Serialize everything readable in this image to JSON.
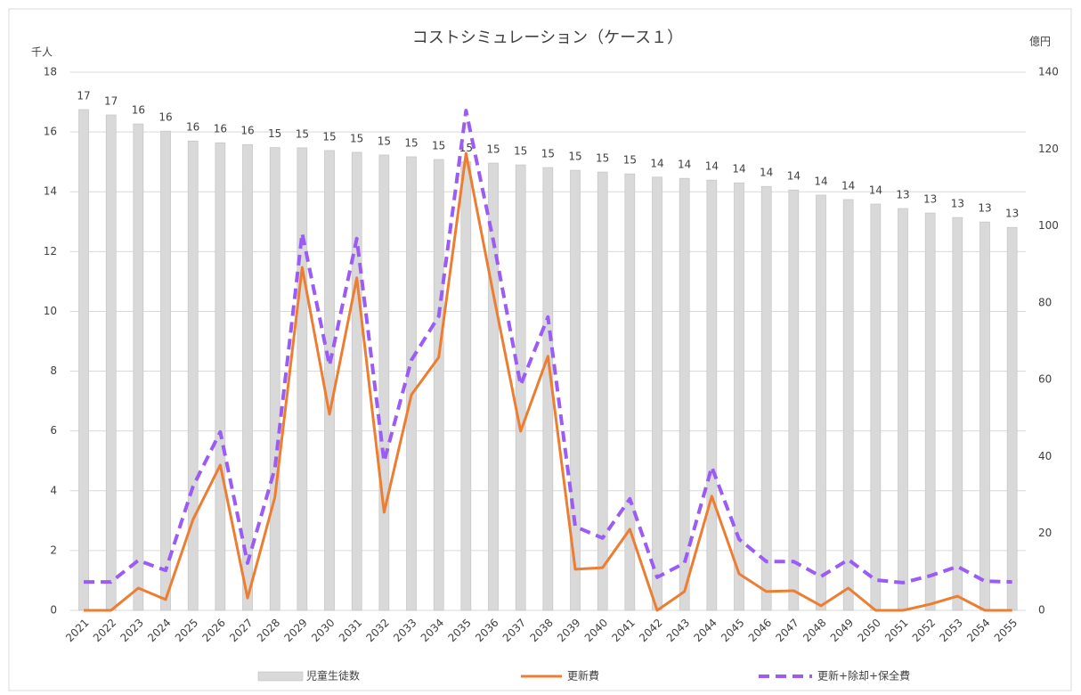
{
  "chart_data": {
    "type": "bar",
    "title": "コストシミュレーション（ケース１）",
    "y_label": "千人",
    "y2_label": "億円",
    "categories": [
      "2021",
      "2022",
      "2023",
      "2024",
      "2025",
      "2026",
      "2027",
      "2028",
      "2029",
      "2030",
      "2031",
      "2032",
      "2033",
      "2034",
      "2035",
      "2036",
      "2037",
      "2038",
      "2039",
      "2040",
      "2041",
      "2042",
      "2043",
      "2044",
      "2045",
      "2046",
      "2047",
      "2048",
      "2049",
      "2050",
      "2051",
      "2052",
      "2053",
      "2054",
      "2055"
    ],
    "ylim": [
      0,
      18
    ],
    "yticks": [
      0,
      2,
      4,
      6,
      8,
      10,
      12,
      14,
      16,
      18
    ],
    "y2lim": [
      0,
      140
    ],
    "y2ticks": [
      0,
      20,
      40,
      60,
      80,
      100,
      120,
      140
    ],
    "grid": true,
    "legend": "bottom",
    "series": [
      {
        "name": "児童生徒数",
        "type": "bar",
        "color": "#d9d9d9",
        "values": [
          16.75,
          16.57,
          16.27,
          16.03,
          15.7,
          15.64,
          15.58,
          15.48,
          15.47,
          15.38,
          15.32,
          15.23,
          15.17,
          15.08,
          15.0,
          14.96,
          14.9,
          14.81,
          14.72,
          14.66,
          14.6,
          14.49,
          14.45,
          14.39,
          14.3,
          14.18,
          14.06,
          13.89,
          13.74,
          13.59,
          13.44,
          13.29,
          13.14,
          12.99,
          12.81
        ],
        "value_labels": [
          "17",
          "17",
          "16",
          "16",
          "16",
          "16",
          "16",
          "15",
          "15",
          "15",
          "15",
          "15",
          "15",
          "15",
          "15",
          "15",
          "15",
          "15",
          "15",
          "15",
          "15",
          "14",
          "14",
          "14",
          "14",
          "14",
          "14",
          "14",
          "14",
          "14",
          "13",
          "13",
          "13",
          "13",
          "13"
        ]
      },
      {
        "name": "更新費",
        "type": "line",
        "axis": "y2",
        "color": "#ed7d31",
        "values": [
          0,
          0,
          5.8,
          2.8,
          23.6,
          37.8,
          3.2,
          29.4,
          89.2,
          51.0,
          86.5,
          25.5,
          56.1,
          65.8,
          118.9,
          82.3,
          46.6,
          66.1,
          10.7,
          11.1,
          21.1,
          0,
          4.9,
          29.7,
          9.5,
          4.9,
          5.1,
          1.2,
          5.8,
          0,
          0,
          1.6,
          3.7,
          0,
          0
        ]
      },
      {
        "name": "更新+除却+保全費",
        "type": "line",
        "axis": "y2",
        "color": "#9b5cf6",
        "dashed": true,
        "values": [
          7.4,
          7.4,
          13.0,
          10.4,
          32.2,
          46.4,
          12.3,
          36.9,
          98.1,
          63.7,
          96.7,
          38.7,
          65.1,
          76.5,
          130.0,
          96.2,
          58.6,
          76.3,
          21.8,
          18.8,
          29.0,
          8.6,
          12.3,
          37.3,
          18.5,
          12.7,
          12.7,
          8.8,
          13.2,
          7.9,
          7.2,
          9.0,
          11.4,
          7.6,
          7.4
        ]
      }
    ]
  }
}
